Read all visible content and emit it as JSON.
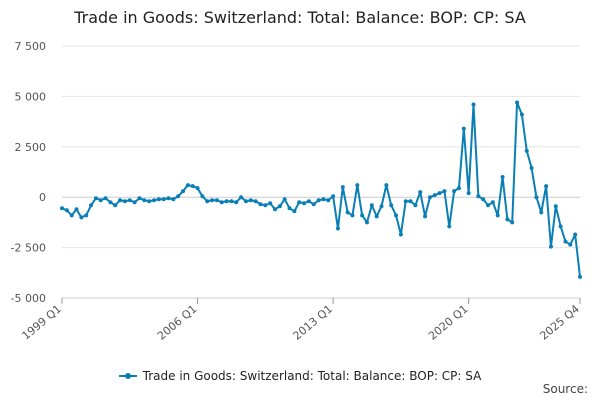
{
  "chart_data": {
    "type": "line",
    "title": "Trade in Goods: Switzerland: Total: Balance: BOP: CP: SA",
    "xlabel": "",
    "ylabel": "",
    "ylim": [
      -5000,
      7500
    ],
    "yticks": [
      7500,
      5000,
      2500,
      0,
      -2500,
      -5000
    ],
    "ytick_labels": [
      "7 500",
      "5 000",
      "2 500",
      "0",
      "-2 500",
      "-5 000"
    ],
    "xtick_labels": [
      "1999 Q1",
      "2006 Q1",
      "2013 Q1",
      "2020 Q1",
      "2025 Q4"
    ],
    "xtick_index": [
      0,
      28,
      56,
      84,
      107
    ],
    "grid": true,
    "legend_position": "bottom",
    "series": [
      {
        "name": "Trade in Goods: Switzerland: Total: Balance: BOP: CP: SA",
        "color": "#0a7fb5",
        "start": "1999 Q1",
        "values": [
          -550,
          -650,
          -900,
          -600,
          -1000,
          -900,
          -400,
          -50,
          -150,
          -50,
          -250,
          -400,
          -150,
          -200,
          -150,
          -250,
          -50,
          -150,
          -200,
          -150,
          -100,
          -100,
          -50,
          -100,
          50,
          300,
          600,
          550,
          450,
          50,
          -200,
          -150,
          -150,
          -250,
          -200,
          -200,
          -250,
          0,
          -200,
          -150,
          -200,
          -350,
          -400,
          -300,
          -600,
          -450,
          -100,
          -550,
          -700,
          -250,
          -300,
          -200,
          -350,
          -150,
          -100,
          -150,
          50,
          -1550,
          500,
          -750,
          -900,
          600,
          -900,
          -1250,
          -400,
          -950,
          -450,
          600,
          -400,
          -900,
          -1850,
          -200,
          -200,
          -400,
          250,
          -950,
          0,
          100,
          200,
          300,
          -1450,
          300,
          450,
          3400,
          200,
          4600,
          50,
          -100,
          -400,
          -250,
          -900,
          1000,
          -1100,
          -1250,
          4700,
          4100,
          2300,
          1450,
          0,
          -750,
          550,
          -2450,
          -450,
          -1450,
          -2200,
          -2350,
          -1850,
          -3950
        ]
      }
    ],
    "source_label": "Source:"
  }
}
